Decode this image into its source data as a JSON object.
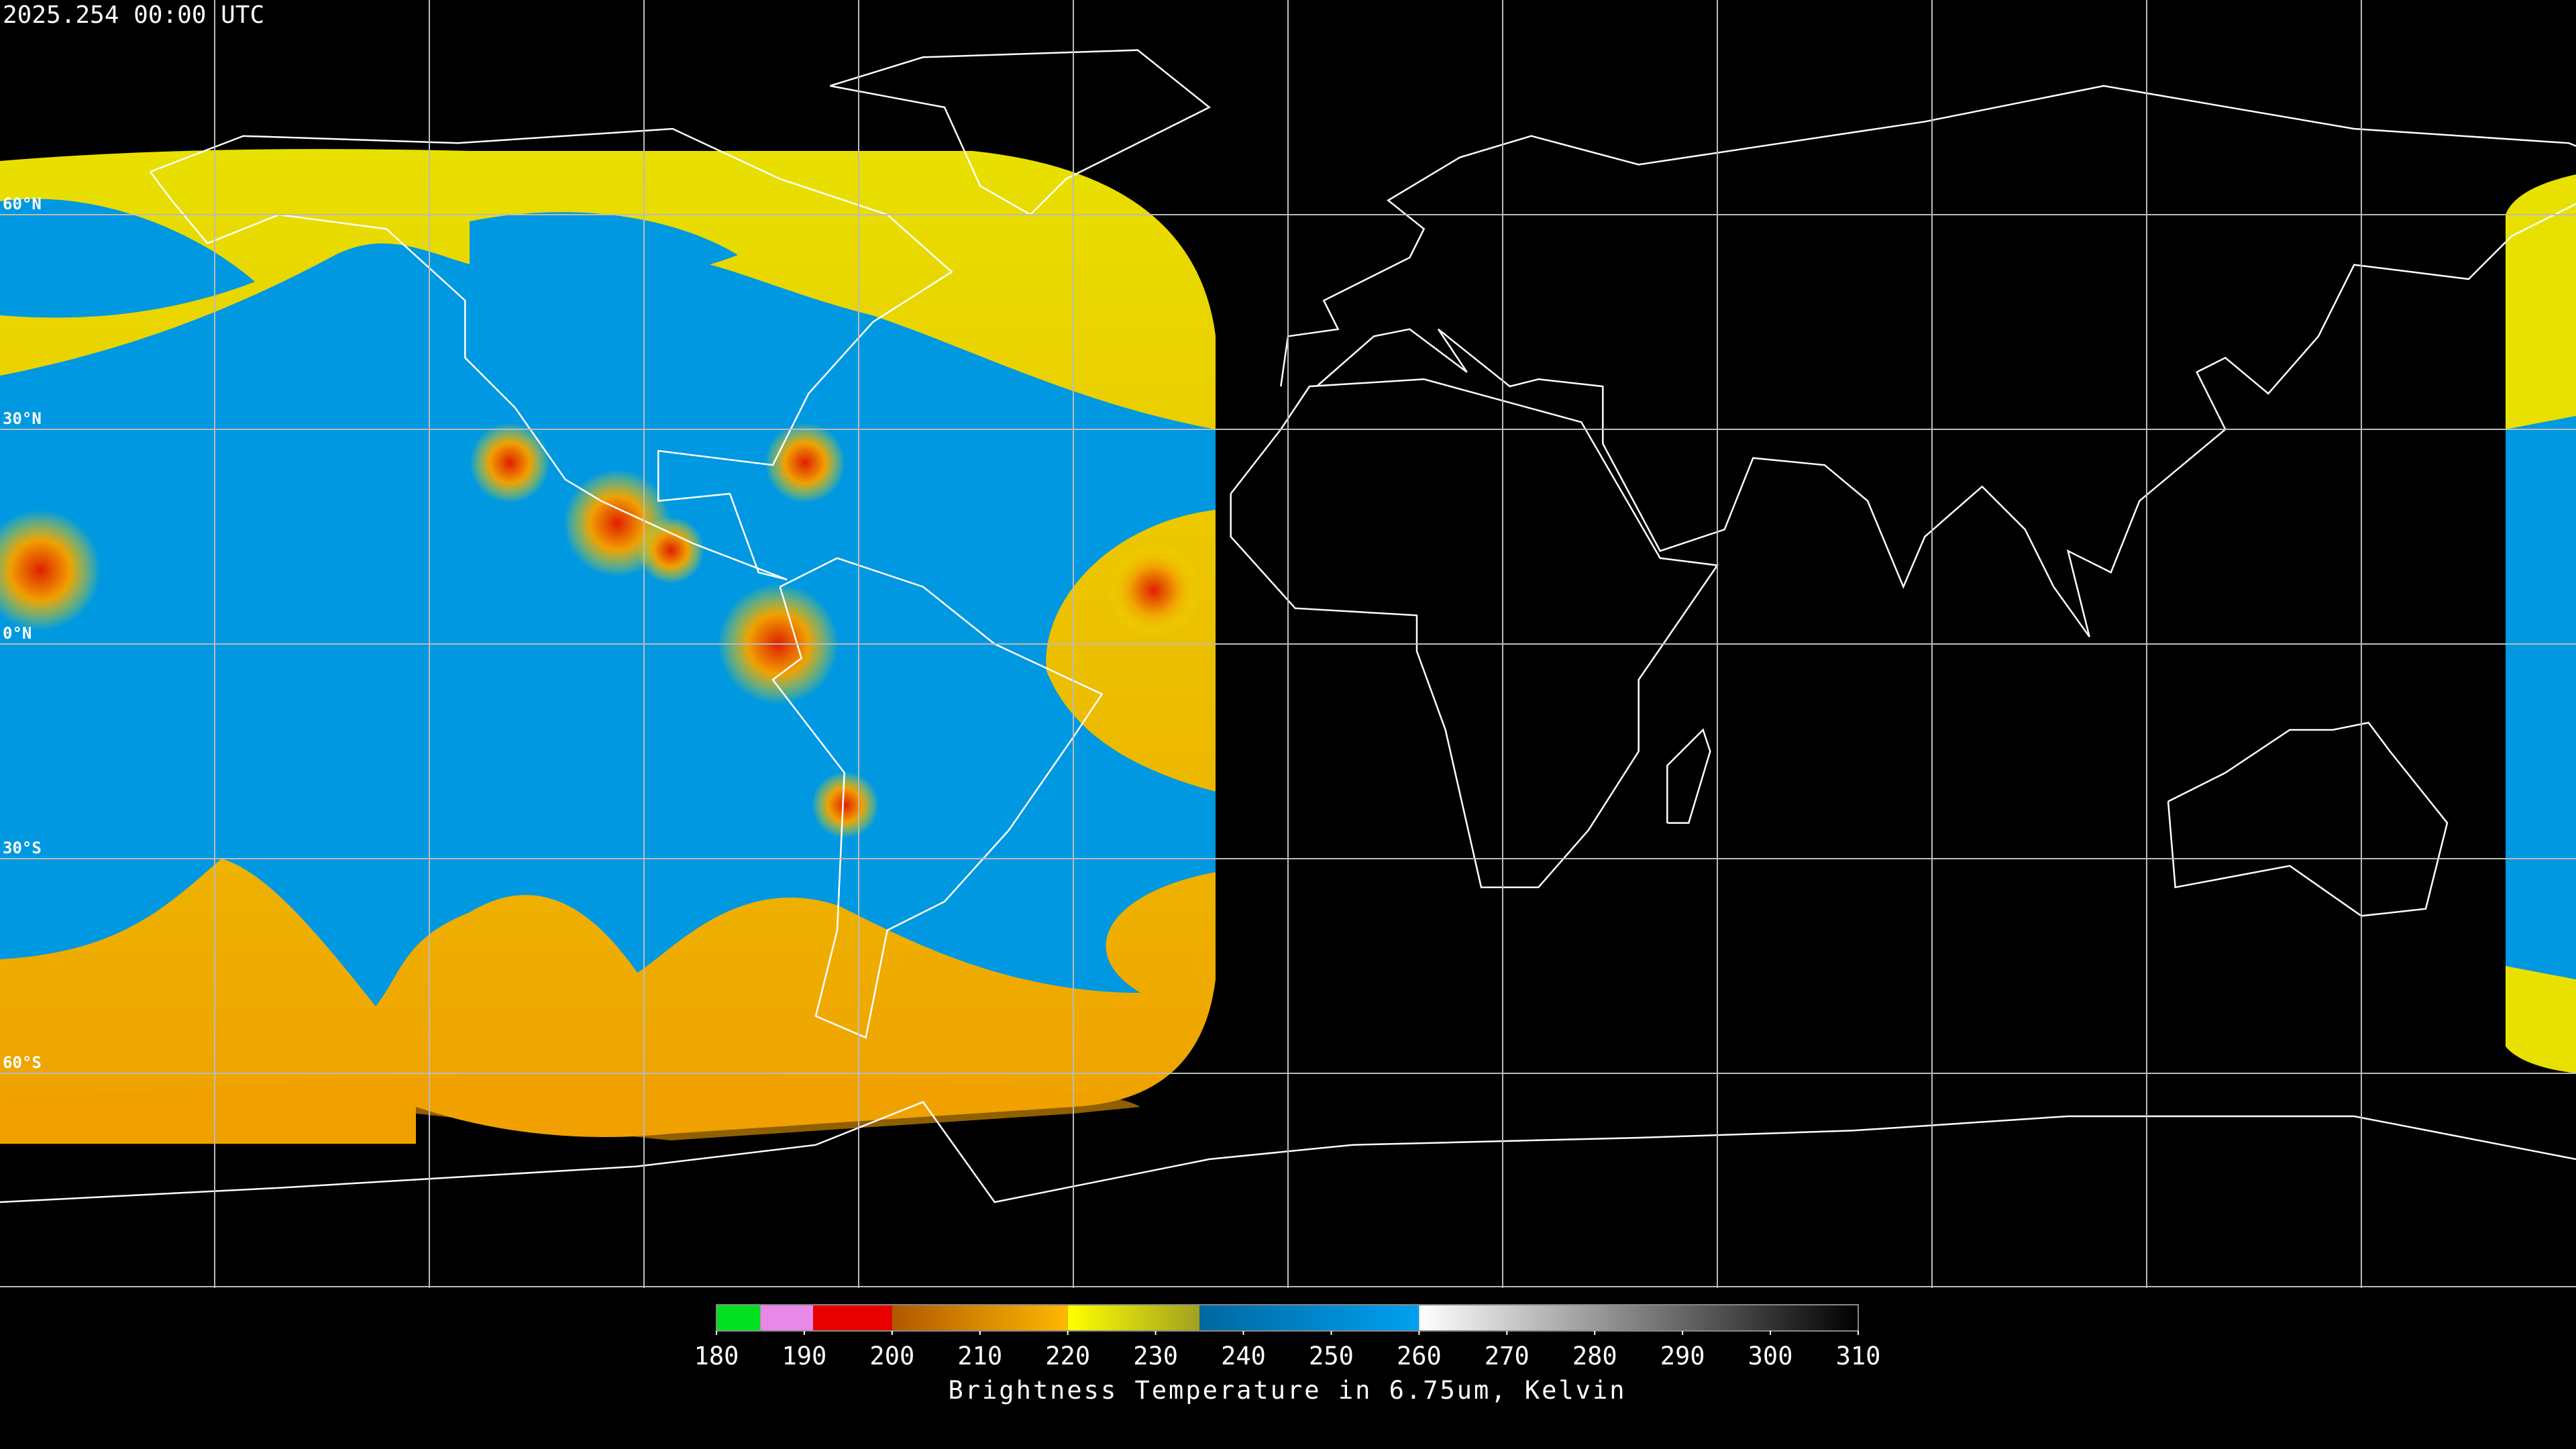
{
  "timestamp": "2025.254 00:00 UTC",
  "map": {
    "lat_labels": [
      "60°N",
      "30°N",
      "0°N",
      "30°S",
      "60°S"
    ]
  },
  "colorbar": {
    "title": "Brightness Temperature in 6.75um, Kelvin",
    "range": [
      180,
      310
    ],
    "ticks": [
      180,
      190,
      200,
      210,
      220,
      230,
      240,
      250,
      260,
      270,
      280,
      290,
      300,
      310
    ],
    "segments": [
      {
        "from": 180,
        "to": 185,
        "colors": [
          "#00e020",
          "#00e020"
        ]
      },
      {
        "from": 185,
        "to": 191,
        "colors": [
          "#e888e8",
          "#e888e8"
        ]
      },
      {
        "from": 191,
        "to": 200,
        "colors": [
          "#e80000",
          "#e80000"
        ]
      },
      {
        "from": 200,
        "to": 220,
        "colors": [
          "#b05800",
          "#ffb800"
        ]
      },
      {
        "from": 220,
        "to": 235,
        "colors": [
          "#ffff00",
          "#a0a020"
        ]
      },
      {
        "from": 235,
        "to": 260,
        "colors": [
          "#0068a0",
          "#00a0f0"
        ]
      },
      {
        "from": 260,
        "to": 310,
        "colors": [
          "#ffffff",
          "#000000"
        ]
      }
    ]
  }
}
